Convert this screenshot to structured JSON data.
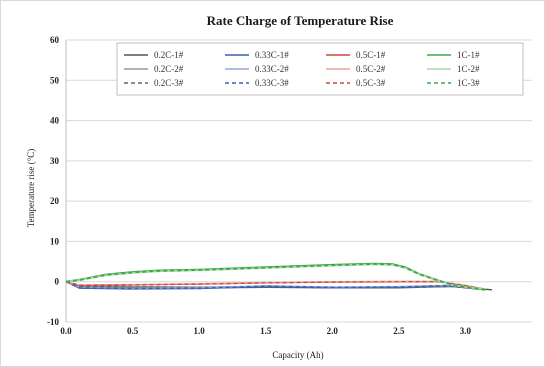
{
  "chart_data": {
    "type": "line",
    "title": "Rate Charge of Temperature Rise",
    "xlabel": "Capacity (Ah)",
    "ylabel": "Temperature rise (°C)",
    "xlim": [
      0.0,
      3.5
    ],
    "ylim": [
      -10,
      60
    ],
    "xticks": [
      "0.0",
      "0.5",
      "1.0",
      "1.5",
      "2.0",
      "2.5",
      "3.0"
    ],
    "xtick_values": [
      0.0,
      0.5,
      1.0,
      1.5,
      2.0,
      2.5,
      3.0
    ],
    "yticks": [
      "-10",
      "0",
      "10",
      "20",
      "30",
      "40",
      "50",
      "60"
    ],
    "ytick_values": [
      -10,
      0,
      10,
      20,
      30,
      40,
      50,
      60
    ],
    "grid": true,
    "legend_position": "top",
    "colors": {
      "0.2C": "#555555",
      "0.33C": "#3a5fb5",
      "0.5C": "#c8473f",
      "1C": "#3fa845"
    },
    "series": [
      {
        "name": "0.2C-1#",
        "color": "#555555",
        "dash": "solid",
        "points": [
          [
            0.0,
            0.0
          ],
          [
            0.1,
            -1.2
          ],
          [
            0.5,
            -1.4
          ],
          [
            1.0,
            -1.5
          ],
          [
            1.5,
            -1.4
          ],
          [
            2.0,
            -1.5
          ],
          [
            2.5,
            -1.5
          ],
          [
            2.9,
            -1.2
          ],
          [
            3.2,
            -2.0
          ]
        ]
      },
      {
        "name": "0.2C-2#",
        "color": "#999999",
        "dash": "solid",
        "points": [
          [
            0.0,
            0.0
          ],
          [
            0.1,
            -1.0
          ],
          [
            0.5,
            -1.2
          ],
          [
            1.0,
            -1.3
          ],
          [
            1.5,
            -1.2
          ],
          [
            2.0,
            -1.3
          ],
          [
            2.5,
            -1.4
          ],
          [
            2.9,
            -1.1
          ],
          [
            3.15,
            -1.9
          ]
        ]
      },
      {
        "name": "0.2C-3#",
        "color": "#666666",
        "dash": "dashed",
        "points": [
          [
            0.0,
            0.0
          ],
          [
            0.1,
            -1.1
          ],
          [
            0.5,
            -1.3
          ],
          [
            1.0,
            -1.4
          ],
          [
            1.5,
            -1.3
          ],
          [
            2.0,
            -1.4
          ],
          [
            2.5,
            -1.4
          ],
          [
            2.9,
            -1.2
          ],
          [
            3.15,
            -2.0
          ]
        ]
      },
      {
        "name": "0.33C-1#",
        "color": "#3a5fb5",
        "dash": "solid",
        "points": [
          [
            0.0,
            0.0
          ],
          [
            0.1,
            -1.6
          ],
          [
            0.5,
            -1.8
          ],
          [
            1.0,
            -1.7
          ],
          [
            1.5,
            -1.2
          ],
          [
            2.0,
            -1.5
          ],
          [
            2.5,
            -1.4
          ],
          [
            2.85,
            -1.0
          ],
          [
            3.15,
            -2.0
          ]
        ]
      },
      {
        "name": "0.33C-2#",
        "color": "#8fa8dc",
        "dash": "solid",
        "points": [
          [
            0.0,
            0.0
          ],
          [
            0.1,
            -1.4
          ],
          [
            0.5,
            -1.6
          ],
          [
            1.0,
            -1.5
          ],
          [
            1.5,
            -1.0
          ],
          [
            2.0,
            -1.3
          ],
          [
            2.5,
            -1.2
          ],
          [
            2.85,
            -0.9
          ],
          [
            3.15,
            -1.9
          ]
        ]
      },
      {
        "name": "0.33C-3#",
        "color": "#3a5fb5",
        "dash": "dashed",
        "points": [
          [
            0.0,
            0.0
          ],
          [
            0.1,
            -1.5
          ],
          [
            0.5,
            -1.7
          ],
          [
            1.0,
            -1.6
          ],
          [
            1.5,
            -1.1
          ],
          [
            2.0,
            -1.4
          ],
          [
            2.5,
            -1.3
          ],
          [
            2.85,
            -1.0
          ],
          [
            3.15,
            -2.0
          ]
        ]
      },
      {
        "name": "0.5C-1#",
        "color": "#c8473f",
        "dash": "solid",
        "points": [
          [
            0.0,
            0.0
          ],
          [
            0.1,
            -0.9
          ],
          [
            0.5,
            -0.8
          ],
          [
            1.0,
            -0.6
          ],
          [
            1.5,
            -0.3
          ],
          [
            2.0,
            -0.1
          ],
          [
            2.5,
            0.0
          ],
          [
            2.8,
            0.0
          ],
          [
            3.0,
            -1.0
          ],
          [
            3.15,
            -1.9
          ]
        ]
      },
      {
        "name": "0.5C-2#",
        "color": "#e8a09a",
        "dash": "solid",
        "points": [
          [
            0.0,
            0.0
          ],
          [
            0.1,
            -0.8
          ],
          [
            0.5,
            -0.7
          ],
          [
            1.0,
            -0.5
          ],
          [
            1.5,
            -0.2
          ],
          [
            2.0,
            0.0
          ],
          [
            2.5,
            0.1
          ],
          [
            2.8,
            0.1
          ],
          [
            3.0,
            -0.9
          ],
          [
            3.15,
            -1.8
          ]
        ]
      },
      {
        "name": "0.5C-3#",
        "color": "#c8473f",
        "dash": "dashed",
        "points": [
          [
            0.0,
            0.0
          ],
          [
            0.1,
            -0.9
          ],
          [
            0.5,
            -0.8
          ],
          [
            1.0,
            -0.6
          ],
          [
            1.5,
            -0.3
          ],
          [
            2.0,
            -0.1
          ],
          [
            2.5,
            0.0
          ],
          [
            2.8,
            0.0
          ],
          [
            3.0,
            -1.0
          ],
          [
            3.15,
            -1.9
          ]
        ]
      },
      {
        "name": "1C-1#",
        "color": "#3fa845",
        "dash": "solid",
        "points": [
          [
            0.0,
            0.0
          ],
          [
            0.1,
            0.5
          ],
          [
            0.3,
            1.8
          ],
          [
            0.5,
            2.4
          ],
          [
            0.7,
            2.8
          ],
          [
            1.0,
            3.0
          ],
          [
            1.5,
            3.6
          ],
          [
            2.0,
            4.2
          ],
          [
            2.3,
            4.5
          ],
          [
            2.45,
            4.4
          ],
          [
            2.55,
            3.6
          ],
          [
            2.65,
            2.0
          ],
          [
            2.78,
            0.5
          ],
          [
            2.9,
            -0.8
          ],
          [
            3.0,
            -1.3
          ],
          [
            3.15,
            -2.0
          ]
        ]
      },
      {
        "name": "1C-2#",
        "color": "#a6dba9",
        "dash": "solid",
        "points": [
          [
            0.0,
            0.0
          ],
          [
            0.1,
            0.4
          ],
          [
            0.3,
            1.6
          ],
          [
            0.5,
            2.2
          ],
          [
            0.7,
            2.6
          ],
          [
            1.0,
            2.8
          ],
          [
            1.5,
            3.4
          ],
          [
            2.0,
            4.0
          ],
          [
            2.3,
            4.3
          ],
          [
            2.45,
            4.2
          ],
          [
            2.55,
            3.4
          ],
          [
            2.65,
            1.9
          ],
          [
            2.78,
            0.4
          ],
          [
            2.9,
            -0.8
          ],
          [
            3.0,
            -1.3
          ],
          [
            3.15,
            -1.9
          ]
        ]
      },
      {
        "name": "1C-3#",
        "color": "#3fa845",
        "dash": "dashed",
        "points": [
          [
            0.0,
            0.0
          ],
          [
            0.1,
            0.4
          ],
          [
            0.3,
            1.7
          ],
          [
            0.5,
            2.3
          ],
          [
            0.7,
            2.7
          ],
          [
            1.0,
            2.9
          ],
          [
            1.5,
            3.5
          ],
          [
            2.0,
            4.1
          ],
          [
            2.3,
            4.4
          ],
          [
            2.45,
            4.3
          ],
          [
            2.55,
            3.5
          ],
          [
            2.65,
            1.9
          ],
          [
            2.78,
            0.5
          ],
          [
            2.9,
            -0.8
          ],
          [
            3.0,
            -1.3
          ],
          [
            3.15,
            -2.0
          ]
        ]
      }
    ]
  }
}
